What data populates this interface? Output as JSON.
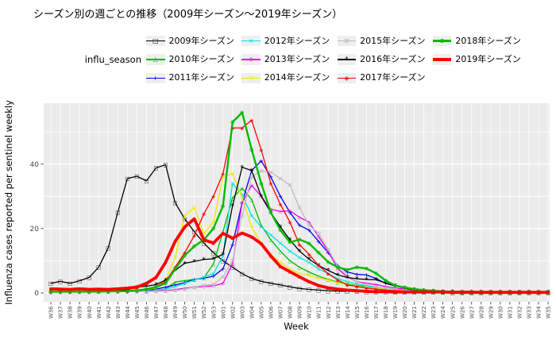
{
  "title": "シーズン別の週ごとの推移（2009年シーズン～2019年シーズン）",
  "legend": {
    "title": "influ_season"
  },
  "panel": {
    "bg": "#EBEBEB",
    "grid_color": "#FFFFFF",
    "axis_text_color": "#4D4D4D",
    "tick_color": "#333333",
    "key_bg": "#EFEFEF"
  },
  "chart_data": {
    "type": "line",
    "title": "シーズン別の週ごとの推移（2009年シーズン～2019年シーズン）",
    "xlabel": "Week",
    "ylabel": "Influenza cases reported per sentinel weekly",
    "ylim": [
      0,
      58
    ],
    "grid": true,
    "legend_position": "top",
    "y_major_ticks": [
      0,
      20,
      40
    ],
    "y_minor_ticks": [
      10,
      30,
      50
    ],
    "x_categories": [
      "W36",
      "W37",
      "W38",
      "W39",
      "W40",
      "W41",
      "W42",
      "W43",
      "W44",
      "W45",
      "W46",
      "W47",
      "W48",
      "W49",
      "W50",
      "W51",
      "W52",
      "W53",
      "W01",
      "W02",
      "W03",
      "W04",
      "W05",
      "W06",
      "W07",
      "W08",
      "W09",
      "W10",
      "W11",
      "W12",
      "W13",
      "W14",
      "W15",
      "W16",
      "W17",
      "W18",
      "W19",
      "W20",
      "W21",
      "W22",
      "W23",
      "W24",
      "W25",
      "W26",
      "W27",
      "W28",
      "W29",
      "W30",
      "W31",
      "W32",
      "W33",
      "W34",
      "W35"
    ],
    "series": [
      {
        "name": "2009年シーズン",
        "color": "#000000",
        "marker": "□",
        "width": 1.3,
        "values": [
          3.0,
          3.6,
          3.0,
          3.8,
          4.8,
          8,
          14,
          25,
          35.5,
          36.2,
          34.8,
          38.8,
          39.8,
          28,
          23,
          19,
          15.5,
          12.5,
          10,
          8,
          6,
          4.5,
          3.6,
          3.0,
          2.5,
          1.9,
          1.4,
          1.1,
          0.9,
          0.7,
          0.6,
          0.5,
          0.5,
          0.4,
          0.4,
          0.4,
          0.3,
          0.3,
          0.3,
          0.3,
          0.3,
          0.3,
          0.2,
          0.2,
          0.2,
          0.2,
          0.2,
          0.2,
          0.2,
          0.2,
          0.2,
          0.2,
          0.2
        ]
      },
      {
        "name": "2010年シーズン",
        "color": "#00BB00",
        "marker": "△",
        "width": 1.3,
        "values": [
          0.5,
          0.5,
          0.5,
          0.5,
          0.5,
          0.5,
          0.5,
          0.6,
          0.6,
          0.7,
          0.7,
          0.8,
          1.2,
          3.4,
          3.8,
          4.2,
          4.7,
          9,
          19,
          29.5,
          32.5,
          29,
          21,
          16.5,
          13,
          10,
          8,
          6.5,
          5.2,
          4.2,
          3.4,
          2.8,
          2.3,
          2.0,
          1.7,
          1.4,
          1.1,
          0.9,
          0.7,
          0.6,
          0.5,
          0.4,
          0.4,
          0.3,
          0.3,
          0.3,
          0.3,
          0.3,
          0.3,
          0.3,
          0.3,
          0.3,
          0.3
        ]
      },
      {
        "name": "2011年シーズン",
        "color": "#0000EE",
        "marker": "+",
        "width": 1.3,
        "values": [
          0.4,
          0.4,
          0.4,
          0.4,
          0.4,
          0.4,
          0.5,
          0.5,
          0.5,
          0.6,
          0.8,
          1.2,
          1.8,
          2.5,
          3.2,
          4.2,
          4.6,
          5.2,
          7.5,
          15,
          28,
          38,
          41,
          36,
          30,
          25,
          21,
          19.5,
          16,
          12.5,
          8.5,
          6.5,
          5.8,
          5.6,
          4.5,
          3.0,
          2.2,
          1.5,
          1.1,
          0.8,
          0.6,
          0.5,
          0.4,
          0.4,
          0.3,
          0.3,
          0.3,
          0.3,
          0.3,
          0.3,
          0.3,
          0.3,
          0.3
        ]
      },
      {
        "name": "2012年シーズン",
        "color": "#00E5E5",
        "marker": "×",
        "width": 1.3,
        "values": [
          0.3,
          0.3,
          0.3,
          0.3,
          0.4,
          0.4,
          0.4,
          0.4,
          0.5,
          0.5,
          0.6,
          0.8,
          1.2,
          2,
          3,
          4,
          5,
          6,
          11.5,
          34,
          30.5,
          24,
          20.5,
          18,
          15.5,
          13,
          11,
          9.5,
          7.5,
          6,
          4.5,
          3.5,
          2.8,
          2.2,
          1.8,
          1.4,
          1.1,
          0.9,
          0.7,
          0.6,
          0.5,
          0.4,
          0.4,
          0.3,
          0.3,
          0.3,
          0.3,
          0.3,
          0.3,
          0.3,
          0.3,
          0.3,
          0.3
        ]
      },
      {
        "name": "2013年シーズン",
        "color": "#EE00EE",
        "marker": "◇",
        "width": 1.3,
        "values": [
          0.3,
          0.3,
          0.3,
          0.3,
          0.3,
          0.4,
          0.4,
          0.4,
          0.4,
          0.5,
          0.5,
          0.6,
          0.8,
          1.0,
          1.5,
          1.8,
          2.0,
          2.2,
          3,
          9,
          28,
          33.4,
          30,
          26,
          25.3,
          25.5,
          23.5,
          22,
          17.5,
          13,
          7.5,
          5,
          3.5,
          3,
          2.6,
          2,
          1.5,
          1.2,
          0.9,
          0.7,
          0.5,
          0.4,
          0.4,
          0.4,
          0.3,
          0.3,
          0.3,
          0.3,
          0.3,
          0.3,
          0.3,
          0.3,
          0.3
        ]
      },
      {
        "name": "2014年シーズン",
        "color": "#F5E600",
        "marker": "▽",
        "width": 1.3,
        "values": [
          0.4,
          0.4,
          0.4,
          0.4,
          0.4,
          0.4,
          0.5,
          0.5,
          0.6,
          0.8,
          1.0,
          1.5,
          4,
          11,
          24,
          26.5,
          18.5,
          22,
          36,
          37,
          29.5,
          20.5,
          15.5,
          12,
          9.5,
          7.5,
          6,
          5.5,
          4.5,
          4,
          3.2,
          2.6,
          2.1,
          1.7,
          1.4,
          1.1,
          0.9,
          0.7,
          0.6,
          0.5,
          0.4,
          0.4,
          0.3,
          0.3,
          0.3,
          0.3,
          0.3,
          0.3,
          0.3,
          0.3,
          0.3,
          0.3,
          0.3
        ]
      },
      {
        "name": "2015年シーズン",
        "color": "#BEBEBE",
        "marker": "⊠",
        "width": 1.3,
        "values": [
          0.3,
          0.3,
          0.3,
          0.3,
          0.3,
          0.3,
          0.4,
          0.4,
          0.4,
          0.4,
          0.5,
          0.5,
          0.6,
          0.8,
          1.2,
          1.8,
          2.4,
          2.6,
          5,
          10,
          24,
          36,
          37.9,
          37.5,
          35.5,
          33.5,
          26.5,
          21,
          18.5,
          13.5,
          8.2,
          5.3,
          3.5,
          2.5,
          1.9,
          1.4,
          1.0,
          0.8,
          0.6,
          0.5,
          0.4,
          0.4,
          0.3,
          0.3,
          0.3,
          0.3,
          0.3,
          0.3,
          0.3,
          0.3,
          0.3,
          0.3,
          0.3
        ]
      },
      {
        "name": "2016年シーズン",
        "color": "#000000",
        "marker": "*",
        "width": 1.3,
        "values": [
          0.3,
          0.3,
          0.4,
          0.4,
          0.5,
          0.5,
          0.6,
          0.7,
          1.0,
          1.8,
          2.1,
          2.6,
          4,
          7,
          9.2,
          9.8,
          10.4,
          10.6,
          12,
          27,
          39,
          38,
          30,
          25,
          20.5,
          16.5,
          13,
          10.5,
          8.5,
          7,
          5.6,
          4.8,
          4.4,
          4.2,
          4.1,
          3.1,
          2.2,
          1.5,
          1.0,
          0.7,
          0.5,
          0.4,
          0.4,
          0.3,
          0.3,
          0.3,
          0.3,
          0.3,
          0.3,
          0.3,
          0.3,
          0.3,
          0.3
        ]
      },
      {
        "name": "2017年シーズン",
        "color": "#FF0000",
        "marker": "◈",
        "width": 1.3,
        "values": [
          0.3,
          0.3,
          0.3,
          0.4,
          0.4,
          0.4,
          0.5,
          0.5,
          0.6,
          0.8,
          1.2,
          2.0,
          3.5,
          8,
          12.5,
          17.8,
          24.5,
          30,
          37,
          51.2,
          51.2,
          53.6,
          44.4,
          34,
          27.5,
          22,
          15,
          12,
          8.5,
          6,
          4,
          2.5,
          2,
          1.5,
          1.2,
          0.9,
          0.7,
          0.6,
          0.5,
          0.4,
          0.4,
          0.4,
          0.3,
          0.3,
          0.3,
          0.3,
          0.3,
          0.3,
          0.3,
          0.2,
          0.2,
          0.2,
          0.2
        ]
      },
      {
        "name": "2018年シーズン",
        "color": "#00BB00",
        "marker": "⊕",
        "width": 2.4,
        "values": [
          0.4,
          0.4,
          0.4,
          0.4,
          0.4,
          0.4,
          0.5,
          0.5,
          0.6,
          0.8,
          1.2,
          1.8,
          3,
          7.4,
          11.6,
          14.5,
          16.5,
          20,
          27,
          53,
          56,
          44.5,
          34,
          25,
          19.5,
          15.7,
          16.6,
          15.4,
          12.5,
          9.6,
          8,
          7.2,
          8,
          7.6,
          6.1,
          3.9,
          2.3,
          1.7,
          1.2,
          0.9,
          0.7,
          0.5,
          0.4,
          0.4,
          0.4,
          0.3,
          0.3,
          0.3,
          0.3,
          0.3,
          0.3,
          0.3,
          0.3
        ]
      },
      {
        "name": "2019年シーズン",
        "color": "#FF0000",
        "marker": "▪",
        "width": 3.8,
        "values": [
          1.3,
          1.2,
          1.1,
          1.3,
          1.1,
          1.2,
          1.1,
          1.3,
          1.5,
          1.8,
          3,
          4.8,
          9.5,
          16,
          20.5,
          23,
          16.5,
          15.5,
          18.5,
          17,
          18.6,
          17.4,
          15.3,
          11.5,
          8.2,
          6.6,
          5,
          3.5,
          2.3,
          1.6,
          1.2,
          0.9,
          0.7,
          0.5,
          0.4,
          0.4,
          0.3,
          0.3,
          0.3,
          0.3,
          0.3,
          0.3,
          0.2,
          0.2,
          0.2,
          0.2,
          0.2,
          0.2,
          0.2,
          0.2,
          0.2,
          0.2,
          0.2
        ]
      }
    ]
  }
}
